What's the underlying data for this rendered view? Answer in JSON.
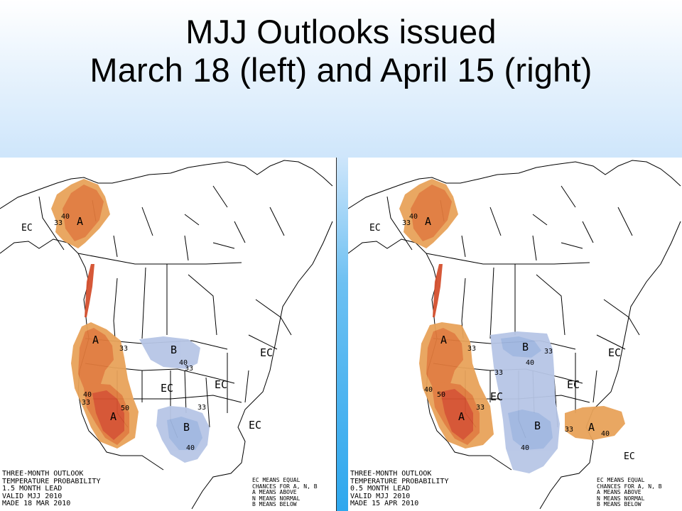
{
  "slide": {
    "title_line1": "MJJ Outlooks issued",
    "title_line2": "March 18 (left) and April 15 (right)"
  },
  "colors": {
    "above_light": "#e8a35a",
    "above_mid": "#e07a3c",
    "above_dark": "#d4502e",
    "below_light": "#b7c6e6",
    "below_mid": "#9fb6e0"
  },
  "maps": [
    {
      "caption": [
        "THREE-MONTH OUTLOOK",
        "TEMPERATURE PROBABILITY",
        "1.5 MONTH LEAD",
        "VALID MJJ 2010",
        "MADE 18 MAR 2010"
      ],
      "legend": [
        "EC MEANS EQUAL",
        "CHANCES FOR A, N, B",
        "A MEANS ABOVE",
        "N MEANS NORMAL",
        "B MEANS BELOW"
      ],
      "labels": {
        "ec_alaska": "EC",
        "a_alaska": "A",
        "c33_alaska": "33",
        "c40_alaska": "40",
        "a_nw": "A",
        "c33_nw": "33",
        "a_sw": "A",
        "c40_sw": "40",
        "c50_sw": "50",
        "c33_sw": "33",
        "b_north": "B",
        "c40_north": "40",
        "c33_north": "33",
        "b_south": "B",
        "c33_south": "33",
        "c40_south": "40",
        "ec_central": "EC",
        "ec_mid": "EC",
        "ec_east": "EC",
        "ec_se": "EC"
      }
    },
    {
      "caption": [
        "THREE-MONTH OUTLOOK",
        "TEMPERATURE PROBABILITY",
        "0.5 MONTH LEAD",
        "VALID MJJ 2010",
        "MADE 15 APR 2010"
      ],
      "legend": [
        "EC MEANS EQUAL",
        "CHANCES FOR A, N, B",
        "A MEANS ABOVE",
        "N MEANS NORMAL",
        "B MEANS BELOW"
      ],
      "labels": {
        "ec_alaska": "EC",
        "a_alaska": "A",
        "c33_alaska": "33",
        "c40_alaska": "40",
        "a_nw": "A",
        "c33_nw": "33",
        "a_sw": "A",
        "c40_sw": "40",
        "c50_sw": "50",
        "c33_sw": "33",
        "b_north": "B",
        "c33_north": "33",
        "c40_north": "40",
        "b_south": "B",
        "c40_south": "40",
        "c33_plains": "33",
        "ec_central": "EC",
        "ec_mid": "EC",
        "ec_east": "EC",
        "a_se": "A",
        "c33_se": "33",
        "c40_se": "40",
        "ec_fl": "EC"
      }
    }
  ]
}
